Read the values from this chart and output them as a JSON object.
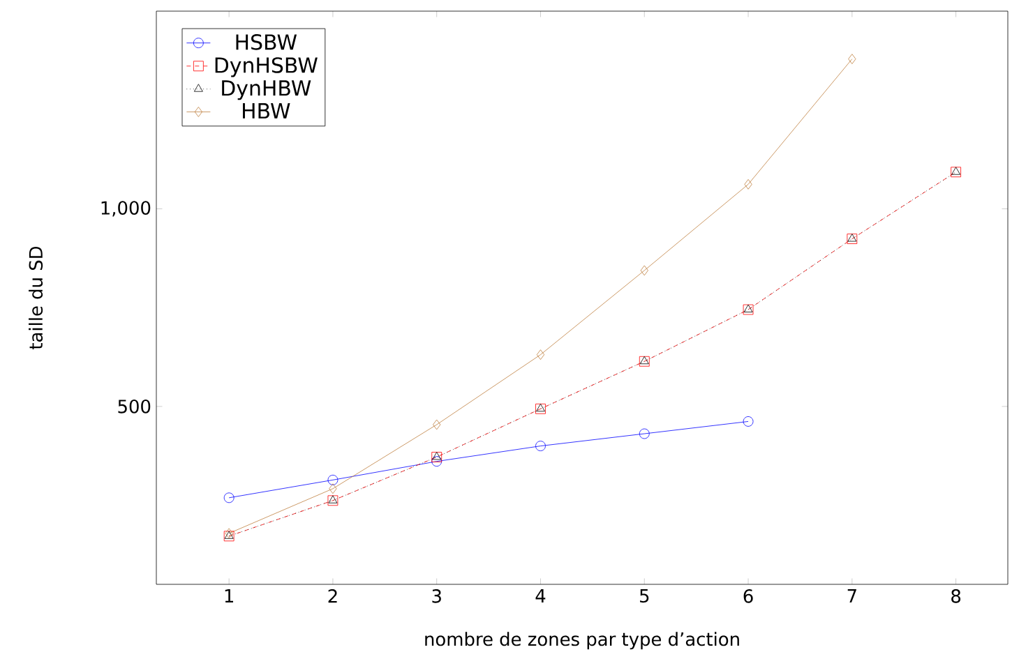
{
  "chart_data": {
    "type": "line",
    "xlabel": "nombre de zones par type d’action",
    "ylabel": "taille du SD",
    "xlim": [
      0.3,
      8.5
    ],
    "ylim": [
      50,
      1500
    ],
    "xticks": [
      1,
      2,
      3,
      4,
      5,
      6,
      7,
      8
    ],
    "yticks": [
      500,
      {
        "value": 1000,
        "label": "1,000"
      }
    ],
    "grid": false,
    "legend": "top left",
    "series": [
      {
        "name": "HSBW",
        "color": "#0000ff",
        "marker": "circle",
        "line_style": "solid",
        "x": [
          1,
          2,
          3,
          4,
          5,
          6
        ],
        "values": [
          269,
          314,
          361,
          400,
          431,
          462
        ]
      },
      {
        "name": "DynHSBW",
        "color": "#ff0000",
        "marker": "square",
        "line_style": "dashed",
        "x": [
          1,
          2,
          3,
          4,
          5,
          6,
          7,
          8
        ],
        "values": [
          172,
          262,
          372,
          494,
          614,
          745,
          924,
          1093
        ]
      },
      {
        "name": "DynHBW",
        "color": "#000000",
        "marker": "triangle",
        "line_style": "dotted",
        "x": [
          1,
          2,
          3,
          4,
          5,
          6,
          7,
          8
        ],
        "values": [
          172,
          262,
          372,
          494,
          614,
          745,
          924,
          1093
        ]
      },
      {
        "name": "HBW",
        "color": "#bf8040",
        "marker": "diamond",
        "line_style": "solid",
        "x": [
          1,
          2,
          3,
          4,
          5,
          6,
          7
        ],
        "values": [
          179,
          292,
          454,
          631,
          844,
          1062,
          1379
        ]
      }
    ]
  }
}
